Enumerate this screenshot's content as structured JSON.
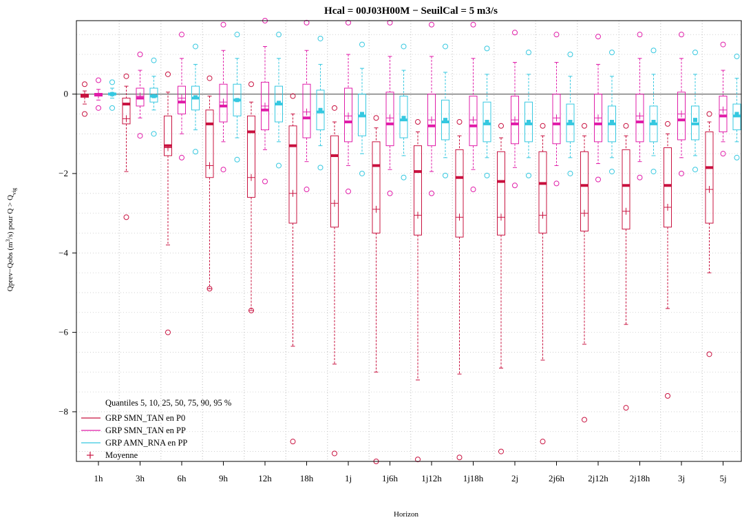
{
  "chart_data": {
    "type": "boxplot",
    "title": "Hcal = 00J03H00M − SeuilCal = 5 m3/s",
    "xlabel": "Horizon",
    "ylabel_parts": {
      "pre": "Qprev−Qobs (m",
      "sup": "3",
      "mid": "/s) pour Q > Q",
      "sub": "vig"
    },
    "ylim": [
      -9.25,
      1.85
    ],
    "yticks": [
      -8,
      -6,
      -4,
      -2,
      0
    ],
    "grid": true,
    "legend_title": "Quantiles 5, 10, 25, 50, 75, 90, 95 %",
    "legend_position": "bottom-left",
    "colors": {
      "P0": "#c8103e",
      "PP": "#e01ba8",
      "RNA": "#35c8e0",
      "zero_line": "#555555",
      "grid": "#c8c8c8"
    },
    "categories": [
      "1h",
      "3h",
      "6h",
      "9h",
      "12h",
      "18h",
      "1j",
      "1j6h",
      "1j12h",
      "1j18h",
      "2j",
      "2j6h",
      "2j12h",
      "2j18h",
      "3j",
      "5j"
    ],
    "series": [
      {
        "name": "GRP SMN_TAN en P0",
        "color_key": "P0",
        "mean_marker": "+",
        "boxes": [
          {
            "q5": -0.5,
            "q10": -0.25,
            "q25": -0.08,
            "q50": -0.04,
            "q75": 0,
            "q90": 0.08,
            "q95": 0.25,
            "mean": -0.03
          },
          {
            "q5": -3.1,
            "q10": -1.95,
            "q25": -0.75,
            "q50": -0.25,
            "q75": -0.1,
            "q90": 0.2,
            "q95": 0.45,
            "mean": -0.62
          },
          {
            "q5": -6.0,
            "q10": -3.8,
            "q25": -1.55,
            "q50": -1.3,
            "q75": -0.55,
            "q90": 0.05,
            "q95": 0.5,
            "mean": -1.35
          },
          {
            "q5": -4.9,
            "q10": -4.9,
            "q25": -2.1,
            "q50": -0.75,
            "q75": -0.4,
            "q90": -0.05,
            "q95": 0.4,
            "mean": -1.8
          },
          {
            "q5": -5.45,
            "q10": -5.45,
            "q25": -2.6,
            "q50": -0.95,
            "q75": -0.55,
            "q90": -0.2,
            "q95": 0.25,
            "mean": -2.1
          },
          {
            "q5": -8.75,
            "q10": -6.35,
            "q25": -3.25,
            "q50": -1.3,
            "q75": -0.8,
            "q90": -0.5,
            "q95": -0.05,
            "mean": -2.5
          },
          {
            "q5": -9.05,
            "q10": -6.8,
            "q25": -3.35,
            "q50": -1.55,
            "q75": -1.05,
            "q90": -0.7,
            "q95": -0.35,
            "mean": -2.75
          },
          {
            "q5": -9.25,
            "q10": -7.0,
            "q25": -3.5,
            "q50": -1.8,
            "q75": -1.2,
            "q90": -0.85,
            "q95": -0.6,
            "mean": -2.9
          },
          {
            "q5": -9.2,
            "q10": -7.2,
            "q25": -3.55,
            "q50": -1.95,
            "q75": -1.3,
            "q90": -0.95,
            "q95": -0.7,
            "mean": -3.05
          },
          {
            "q5": -9.15,
            "q10": -7.05,
            "q25": -3.6,
            "q50": -2.1,
            "q75": -1.4,
            "q90": -1.05,
            "q95": -0.7,
            "mean": -3.1
          },
          {
            "q5": -9.0,
            "q10": -6.9,
            "q25": -3.55,
            "q50": -2.2,
            "q75": -1.45,
            "q90": -1.1,
            "q95": -0.8,
            "mean": -3.1
          },
          {
            "q5": -8.75,
            "q10": -6.7,
            "q25": -3.5,
            "q50": -2.25,
            "q75": -1.45,
            "q90": -1.05,
            "q95": -0.8,
            "mean": -3.05
          },
          {
            "q5": -8.2,
            "q10": -6.3,
            "q25": -3.45,
            "q50": -2.3,
            "q75": -1.45,
            "q90": -1.05,
            "q95": -0.8,
            "mean": -3.0
          },
          {
            "q5": -7.9,
            "q10": -5.8,
            "q25": -3.4,
            "q50": -2.3,
            "q75": -1.4,
            "q90": -1.05,
            "q95": -0.8,
            "mean": -2.95
          },
          {
            "q5": -7.6,
            "q10": -5.4,
            "q25": -3.35,
            "q50": -2.3,
            "q75": -1.35,
            "q90": -1.0,
            "q95": -0.75,
            "mean": -2.85
          },
          {
            "q5": -6.55,
            "q10": -4.5,
            "q25": -3.25,
            "q50": -1.85,
            "q75": -0.95,
            "q90": -0.7,
            "q95": -0.5,
            "mean": -2.4
          }
        ]
      },
      {
        "name": "GRP SMN_TAN en PP",
        "color_key": "PP",
        "mean_marker": "+",
        "boxes": [
          {
            "q5": -0.35,
            "q10": -0.15,
            "q25": -0.05,
            "q50": -0.02,
            "q75": 0.02,
            "q90": 0.12,
            "q95": 0.35,
            "mean": -0.02
          },
          {
            "q5": -1.05,
            "q10": -0.6,
            "q25": -0.3,
            "q50": -0.1,
            "q75": 0.15,
            "q90": 0.6,
            "q95": 1.0,
            "mean": -0.05
          },
          {
            "q5": -1.6,
            "q10": -1.0,
            "q25": -0.5,
            "q50": -0.2,
            "q75": 0.2,
            "q90": 0.9,
            "q95": 1.5,
            "mean": -0.1
          },
          {
            "q5": -1.9,
            "q10": -1.2,
            "q25": -0.7,
            "q50": -0.3,
            "q75": 0.25,
            "q90": 1.1,
            "q95": 1.75,
            "mean": -0.2
          },
          {
            "q5": -2.2,
            "q10": -1.4,
            "q25": -0.9,
            "q50": -0.4,
            "q75": 0.3,
            "q90": 1.2,
            "q95": 1.85,
            "mean": -0.3
          },
          {
            "q5": -2.4,
            "q10": -1.7,
            "q25": -1.1,
            "q50": -0.6,
            "q75": 0.25,
            "q90": 1.1,
            "q95": 1.8,
            "mean": -0.45
          },
          {
            "q5": -2.45,
            "q10": -1.8,
            "q25": -1.2,
            "q50": -0.7,
            "q75": 0.15,
            "q90": 1.0,
            "q95": 1.8,
            "mean": -0.55
          },
          {
            "q5": -2.5,
            "q10": -1.9,
            "q25": -1.3,
            "q50": -0.75,
            "q75": 0.05,
            "q90": 0.95,
            "q95": 1.8,
            "mean": -0.6
          },
          {
            "q5": -2.5,
            "q10": -1.95,
            "q25": -1.3,
            "q50": -0.8,
            "q75": 0.0,
            "q90": 0.95,
            "q95": 1.75,
            "mean": -0.65
          },
          {
            "q5": -2.4,
            "q10": -1.9,
            "q25": -1.3,
            "q50": -0.8,
            "q75": -0.05,
            "q90": 0.9,
            "q95": 1.75,
            "mean": -0.65
          },
          {
            "q5": -2.3,
            "q10": -1.85,
            "q25": -1.25,
            "q50": -0.75,
            "q75": -0.05,
            "q90": 0.8,
            "q95": 1.55,
            "mean": -0.65
          },
          {
            "q5": -2.25,
            "q10": -1.8,
            "q25": -1.25,
            "q50": -0.75,
            "q75": 0.0,
            "q90": 0.8,
            "q95": 1.5,
            "mean": -0.6
          },
          {
            "q5": -2.15,
            "q10": -1.75,
            "q25": -1.2,
            "q50": -0.75,
            "q75": 0.0,
            "q90": 0.75,
            "q95": 1.45,
            "mean": -0.6
          },
          {
            "q5": -2.1,
            "q10": -1.7,
            "q25": -1.2,
            "q50": -0.7,
            "q75": 0.0,
            "q90": 0.9,
            "q95": 1.5,
            "mean": -0.55
          },
          {
            "q5": -2.0,
            "q10": -1.6,
            "q25": -1.15,
            "q50": -0.65,
            "q75": 0.05,
            "q90": 0.9,
            "q95": 1.5,
            "mean": -0.5
          },
          {
            "q5": -1.5,
            "q10": -1.2,
            "q25": -0.95,
            "q50": -0.55,
            "q75": -0.05,
            "q90": 0.6,
            "q95": 1.25,
            "mean": -0.4
          }
        ]
      },
      {
        "name": "GRP AMN_RNA en PP",
        "color_key": "RNA",
        "mean_marker": "box",
        "boxes": [
          {
            "q5": -0.35,
            "q10": -0.1,
            "q25": -0.02,
            "q50": 0.0,
            "q75": 0.03,
            "q90": 0.15,
            "q95": 0.3,
            "mean": 0.0
          },
          {
            "q5": -1.0,
            "q10": -0.4,
            "q25": -0.2,
            "q50": -0.05,
            "q75": 0.15,
            "q90": 0.45,
            "q95": 0.85,
            "mean": -0.05
          },
          {
            "q5": -1.45,
            "q10": -0.9,
            "q25": -0.4,
            "q50": -0.1,
            "q75": 0.2,
            "q90": 0.75,
            "q95": 1.2,
            "mean": -0.08
          },
          {
            "q5": -1.65,
            "q10": -1.1,
            "q25": -0.55,
            "q50": -0.15,
            "q75": 0.25,
            "q90": 0.9,
            "q95": 1.5,
            "mean": -0.15
          },
          {
            "q5": -1.8,
            "q10": -1.2,
            "q25": -0.7,
            "q50": -0.25,
            "q75": 0.2,
            "q90": 0.9,
            "q95": 1.5,
            "mean": -0.22
          },
          {
            "q5": -1.85,
            "q10": -1.3,
            "q25": -0.9,
            "q50": -0.45,
            "q75": 0.1,
            "q90": 0.75,
            "q95": 1.4,
            "mean": -0.4
          },
          {
            "q5": -2.0,
            "q10": -1.5,
            "q25": -1.05,
            "q50": -0.55,
            "q75": 0.0,
            "q90": 0.65,
            "q95": 1.25,
            "mean": -0.5
          },
          {
            "q5": -2.1,
            "q10": -1.55,
            "q25": -1.1,
            "q50": -0.65,
            "q75": -0.05,
            "q90": 0.6,
            "q95": 1.2,
            "mean": -0.6
          },
          {
            "q5": -2.05,
            "q10": -1.6,
            "q25": -1.15,
            "q50": -0.7,
            "q75": -0.15,
            "q90": 0.55,
            "q95": 1.2,
            "mean": -0.65
          },
          {
            "q5": -2.05,
            "q10": -1.6,
            "q25": -1.2,
            "q50": -0.75,
            "q75": -0.2,
            "q90": 0.5,
            "q95": 1.15,
            "mean": -0.7
          },
          {
            "q5": -2.05,
            "q10": -1.6,
            "q25": -1.2,
            "q50": -0.75,
            "q75": -0.2,
            "q90": 0.5,
            "q95": 1.05,
            "mean": -0.7
          },
          {
            "q5": -2.0,
            "q10": -1.6,
            "q25": -1.2,
            "q50": -0.75,
            "q75": -0.25,
            "q90": 0.45,
            "q95": 1.0,
            "mean": -0.7
          },
          {
            "q5": -1.95,
            "q10": -1.6,
            "q25": -1.2,
            "q50": -0.75,
            "q75": -0.3,
            "q90": 0.45,
            "q95": 1.05,
            "mean": -0.7
          },
          {
            "q5": -1.95,
            "q10": -1.55,
            "q25": -1.2,
            "q50": -0.75,
            "q75": -0.3,
            "q90": 0.5,
            "q95": 1.1,
            "mean": -0.7
          },
          {
            "q5": -1.9,
            "q10": -1.55,
            "q25": -1.15,
            "q50": -0.75,
            "q75": -0.3,
            "q90": 0.5,
            "q95": 1.05,
            "mean": -0.65
          },
          {
            "q5": -1.6,
            "q10": -1.2,
            "q25": -0.9,
            "q50": -0.55,
            "q75": -0.25,
            "q90": 0.4,
            "q95": 0.95,
            "mean": -0.5
          }
        ]
      }
    ]
  }
}
